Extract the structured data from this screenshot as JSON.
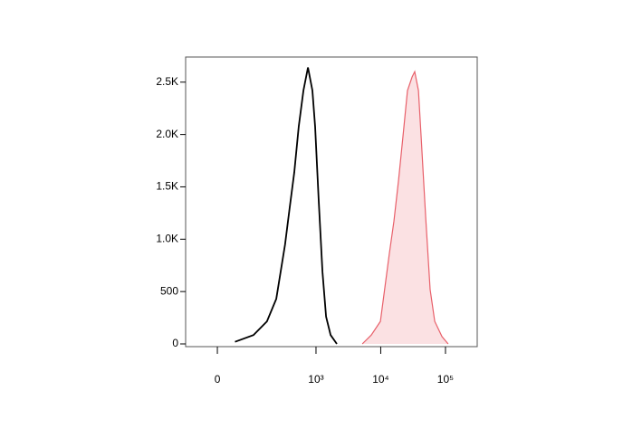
{
  "chart_data": {
    "type": "histogram",
    "xscale": "asinh",
    "xscale_width": 60,
    "xlim": [
      -83,
      309000
    ],
    "xticks": [
      0,
      {
        "value": 1000,
        "label": "10³"
      },
      {
        "value": 10000,
        "label": "10⁴"
      },
      {
        "value": 100000,
        "label": "10⁵"
      }
    ],
    "ylim": [
      -26,
      2740
    ],
    "yticks": [
      0,
      500,
      {
        "value": 1000,
        "label": "1.0K"
      },
      {
        "value": 1500,
        "label": "1.5K"
      },
      {
        "value": 2000,
        "label": "2.0K"
      },
      {
        "value": 2500,
        "label": "2.5K"
      }
    ],
    "series": [
      {
        "color": "#000000",
        "fill": null,
        "x": [
          40,
          100,
          170,
          240,
          330,
          390,
          460,
          540,
          640,
          750,
          880,
          970,
          1100,
          1260,
          1430,
          1680,
          2100
        ],
        "values": [
          20,
          85,
          215,
          430,
          950,
          1300,
          1640,
          2075,
          2420,
          2640,
          2420,
          2075,
          1380,
          690,
          260,
          85,
          0
        ]
      },
      {
        "color": "#e8606a",
        "fill": "#fbe1e3",
        "x": [
          5190,
          7150,
          9880,
          13600,
          16000,
          18800,
          22100,
          25900,
          30500,
          33500,
          38200,
          42000,
          49400,
          58000,
          68200,
          88200,
          110000
        ],
        "values": [
          0,
          85,
          215,
          865,
          1170,
          1560,
          1990,
          2420,
          2550,
          2600,
          2420,
          1990,
          1210,
          520,
          215,
          70,
          0
        ]
      }
    ]
  }
}
